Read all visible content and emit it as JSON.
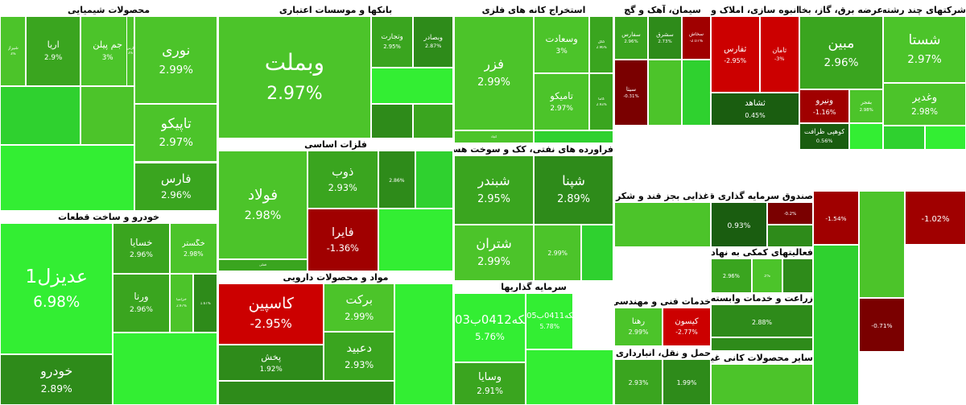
{
  "chart_data": {
    "type": "treemap",
    "value_unit": "%",
    "colors": {
      "positive": [
        "#2e8b1a",
        "#3aa51f",
        "#4cc42a",
        "#2fd12f",
        "#33ee33"
      ],
      "negative": [
        "#cc0000",
        "#a00000",
        "#7a0000"
      ],
      "neutral": "#1a5d10"
    },
    "sectors": [
      {
        "name": "محصولات شیمیایی",
        "stocks": [
          {
            "name": "نوری",
            "change": 2.99
          },
          {
            "name": "تاپیکو",
            "change": 2.97
          },
          {
            "name": "فارس",
            "change": 2.96
          },
          {
            "name": "جم پیلن",
            "change": 3
          },
          {
            "name": "زاگرس",
            "change": 3
          },
          {
            "name": "آریا",
            "change": 2.9
          },
          {
            "name": "شیراز",
            "change": 3
          },
          {
            "name": "",
            "change": null
          },
          {
            "name": "",
            "change": null
          },
          {
            "name": "",
            "change": null
          }
        ]
      },
      {
        "name": "بانکها و موسسات اعتباری",
        "stocks": [
          {
            "name": "وبملت",
            "change": 2.97
          },
          {
            "name": "وتجارت",
            "change": 2.95
          },
          {
            "name": "وبصادر",
            "change": 2.87
          },
          {
            "name": "",
            "change": null
          },
          {
            "name": "",
            "change": null
          },
          {
            "name": "",
            "change": null
          }
        ]
      },
      {
        "name": "استخراج کانه های فلزی",
        "stocks": [
          {
            "name": "فزر",
            "change": 2.99
          },
          {
            "name": "وسعادت",
            "change": 3
          },
          {
            "name": "کگل",
            "change": 2.96
          },
          {
            "name": "تامیکو",
            "change": 2.97
          },
          {
            "name": "کاما",
            "change": 2.93
          },
          {
            "name": "کچاد",
            "change": null
          },
          {
            "name": "",
            "change": null
          }
        ]
      },
      {
        "name": "سیمان، آهک و گچ",
        "stocks": [
          {
            "name": "سفارس",
            "change": 2.96
          },
          {
            "name": "سشرق",
            "change": 2.73
          },
          {
            "name": "سخاش",
            "change": -2.07
          },
          {
            "name": "سیتا",
            "change": -0.31
          },
          {
            "name": "",
            "change": null
          },
          {
            "name": "",
            "change": null
          }
        ]
      },
      {
        "name": "انبوه سازی، املاک و مستغلات",
        "stocks": [
          {
            "name": "ثفارس",
            "change": -2.95
          },
          {
            "name": "ثامان",
            "change": -3
          },
          {
            "name": "ثشاهد",
            "change": 0.45
          },
          {
            "name": "",
            "change": null
          }
        ]
      },
      {
        "name": "عرضه برق، گاز، بخاروآب گرم",
        "stocks": [
          {
            "name": "مبین",
            "change": 2.96
          },
          {
            "name": "ونیرو",
            "change": -1.16
          },
          {
            "name": "بفجر",
            "change": 2.98
          },
          {
            "name": "کوهپی ظرافت",
            "change": 0.56
          },
          {
            "name": "",
            "change": null
          }
        ]
      },
      {
        "name": "شرکتهای چند رشته ای صنعتی",
        "stocks": [
          {
            "name": "شستا",
            "change": 2.97
          },
          {
            "name": "وغدیر",
            "change": 2.98
          },
          {
            "name": "",
            "change": null
          },
          {
            "name": "",
            "change": null
          }
        ]
      },
      {
        "name": "خودرو و ساخت قطعات",
        "stocks": [
          {
            "name": "خسایا",
            "change": 2.96
          },
          {
            "name": "خگستر",
            "change": 2.98
          },
          {
            "name": "عدیزل1",
            "change": 6.98
          },
          {
            "name": "خودرو",
            "change": 2.89
          },
          {
            "name": "ورنا",
            "change": 2.96
          },
          {
            "name": "خزامیا",
            "change": 2.97
          },
          {
            "name": "",
            "change": 1.67
          },
          {
            "name": "",
            "change": null
          }
        ]
      },
      {
        "name": "فلزات اساسی",
        "stocks": [
          {
            "name": "فولاد",
            "change": 2.98
          },
          {
            "name": "ذوب",
            "change": 2.93
          },
          {
            "name": "فایرا",
            "change": -1.36
          },
          {
            "name": "فملی",
            "change": null
          },
          {
            "name": "",
            "change": 2.86
          },
          {
            "name": "",
            "change": null
          },
          {
            "name": "",
            "change": null
          }
        ]
      },
      {
        "name": "فراورده های نفتی، کک و سوخت هسته ای",
        "stocks": [
          {
            "name": "شبندر",
            "change": 2.95
          },
          {
            "name": "شپنا",
            "change": 2.89
          },
          {
            "name": "شتران",
            "change": 2.99
          },
          {
            "name": "",
            "change": 2.99
          },
          {
            "name": "",
            "change": null
          }
        ]
      },
      {
        "name": "مواد و محصولات دارویی",
        "stocks": [
          {
            "name": "کاسپین",
            "change": -2.95
          },
          {
            "name": "برکت",
            "change": 2.99
          },
          {
            "name": "پخش",
            "change": 1.92
          },
          {
            "name": "دعبید",
            "change": 2.93
          },
          {
            "name": "",
            "change": null
          },
          {
            "name": "",
            "change": null
          }
        ]
      },
      {
        "name": "سرمایه گذاریها",
        "stocks": [
          {
            "name": "سکه0412ب03",
            "change": 5.76
          },
          {
            "name": "سکه0411ب05",
            "change": 5.78
          },
          {
            "name": "وسایا",
            "change": 2.91
          },
          {
            "name": "",
            "change": null
          }
        ]
      },
      {
        "name": "غذایی بجز قند و شکر",
        "stocks": [
          {
            "name": "",
            "change": null
          }
        ]
      },
      {
        "name": "صندوق سرمایه گذاری قابل معامله",
        "stocks": [
          {
            "name": "",
            "change": 0.93
          },
          {
            "name": "",
            "change": -0.2
          },
          {
            "name": "",
            "change": null
          }
        ]
      },
      {
        "name": "زراعت و خدمات وابسته",
        "stocks": [
          {
            "name": "",
            "change": 2.88
          },
          {
            "name": "",
            "change": null
          }
        ]
      },
      {
        "name": "خدمات فنی و مهندسی",
        "stocks": [
          {
            "name": "رهنا",
            "change": 2.99
          },
          {
            "name": "کیسون",
            "change": -2.77
          },
          {
            "name": "",
            "change": null
          }
        ]
      },
      {
        "name": "حمل و نقل، انبارداری و ارتباطات",
        "stocks": [
          {
            "name": "",
            "change": 2.93
          },
          {
            "name": "",
            "change": 1.99
          },
          {
            "name": "",
            "change": null
          }
        ]
      },
      {
        "name": "سایر محصولات کانی غیرفلزی",
        "stocks": [
          {
            "name": "",
            "change": null
          }
        ]
      },
      {
        "name": "فعالیتهای کمکی به نهادهای مالی واسط",
        "stocks": [
          {
            "name": "",
            "change": 2.96
          },
          {
            "name": "",
            "change": 3
          },
          {
            "name": "",
            "change": null
          }
        ]
      },
      {
        "name": "",
        "stocks": [
          {
            "name": "",
            "change": -1.54
          },
          {
            "name": "",
            "change": -1.02
          },
          {
            "name": "",
            "change": -0.71
          },
          {
            "name": "",
            "change": null
          },
          {
            "name": "",
            "change": null
          }
        ]
      }
    ]
  }
}
